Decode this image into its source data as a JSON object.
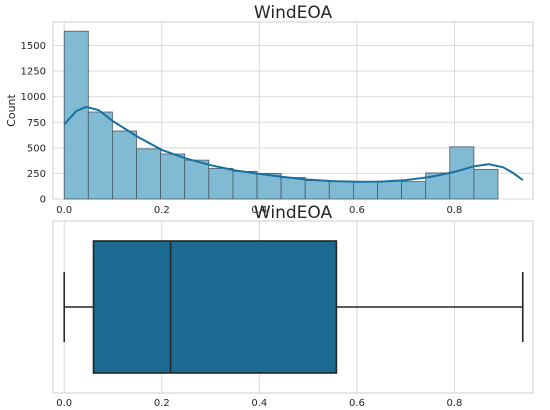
{
  "chart_data": [
    {
      "type": "histogram",
      "title": "WindEOA",
      "xlabel": "",
      "ylabel": "Count",
      "xlim": [
        -0.023,
        0.961
      ],
      "ylim": [
        0,
        1730
      ],
      "x_ticks": [
        "0.0",
        "0.2",
        "0.4",
        "0.6",
        "0.8"
      ],
      "y_ticks": [
        "0",
        "250",
        "500",
        "750",
        "1000",
        "1250",
        "1500"
      ],
      "grid": true,
      "bin_start": 0.0,
      "bin_width": 0.0494,
      "bin_edges_note": "",
      "values": [
        1640,
        850,
        665,
        490,
        440,
        380,
        300,
        270,
        250,
        210,
        180,
        175,
        165,
        175,
        170,
        255,
        510,
        290
      ],
      "bar_color": "#7ab6d1",
      "kde": {
        "color": "#1a70a0",
        "x": [
          0.0,
          0.025,
          0.045,
          0.07,
          0.1,
          0.15,
          0.2,
          0.25,
          0.3,
          0.35,
          0.4,
          0.45,
          0.5,
          0.55,
          0.6,
          0.65,
          0.7,
          0.75,
          0.8,
          0.84,
          0.87,
          0.9,
          0.92,
          0.94
        ],
        "y": [
          730,
          860,
          900,
          870,
          760,
          610,
          480,
          395,
          330,
          280,
          245,
          215,
          190,
          175,
          168,
          170,
          185,
          215,
          265,
          320,
          340,
          310,
          255,
          185
        ]
      }
    },
    {
      "type": "box",
      "title": "WindEOA",
      "xlabel": "",
      "ylabel": "",
      "xlim": [
        -0.023,
        0.961
      ],
      "x_ticks": [
        "0.0",
        "0.2",
        "0.4",
        "0.6",
        "0.8"
      ],
      "grid": true,
      "whisker_low": 0.0,
      "q1": 0.06,
      "median": 0.218,
      "q3": 0.558,
      "whisker_high": 0.94,
      "box_color": "#1a6a92"
    }
  ]
}
